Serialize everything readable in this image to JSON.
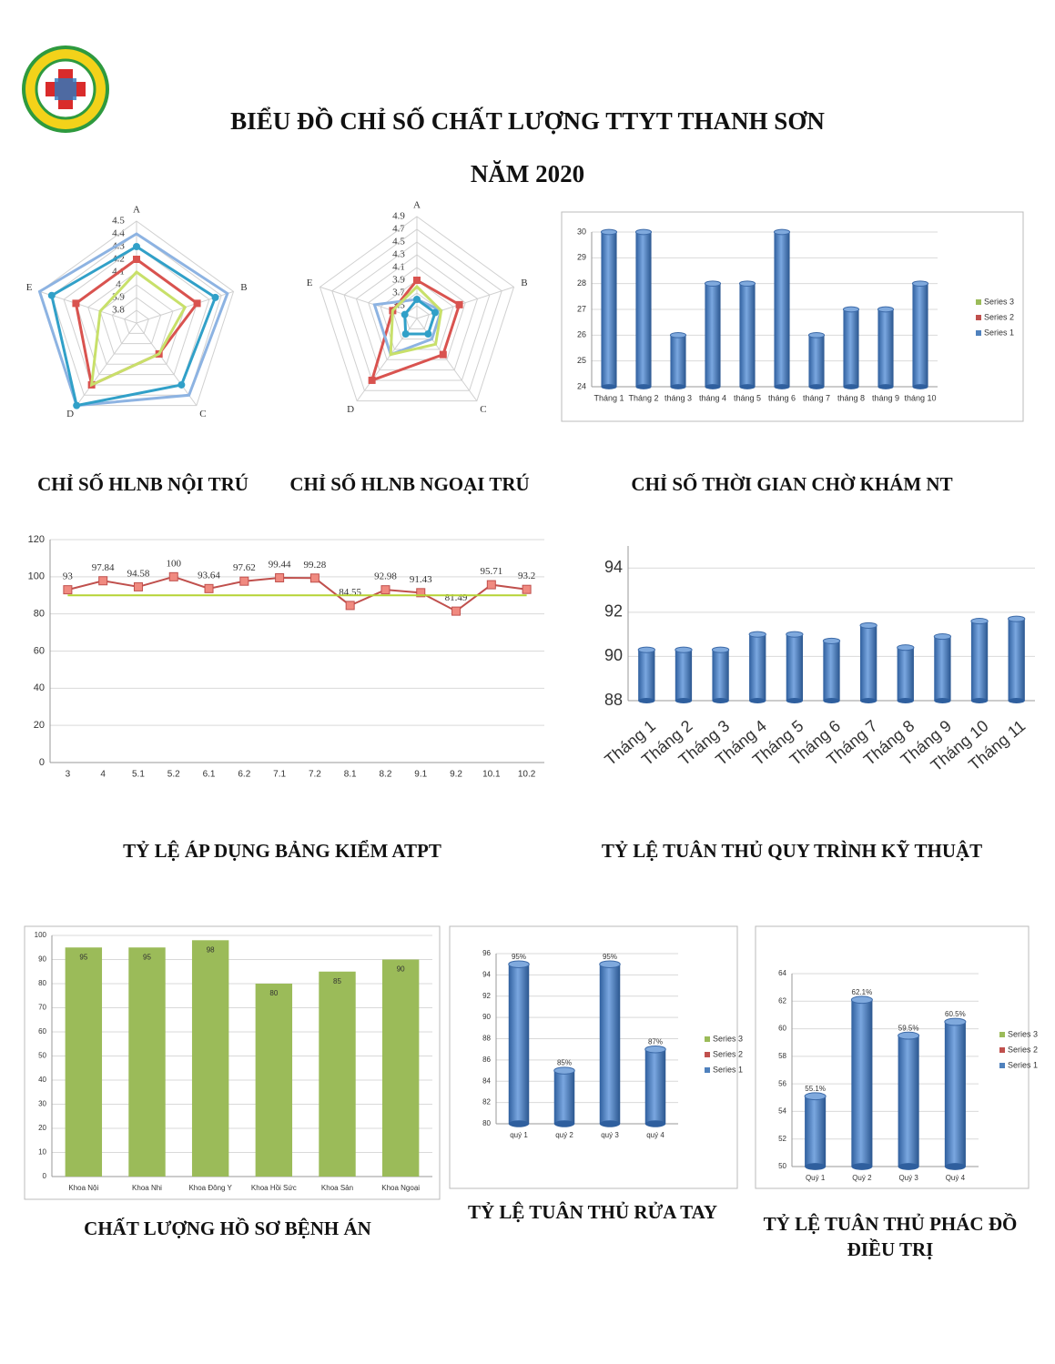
{
  "header": {
    "title_line1": "BIỂU ĐỒ CHỈ SỐ CHẤT LƯỢNG TTYT THANH SƠN",
    "title_line2": "NĂM 2020"
  },
  "chart_data": [
    {
      "type": "radar",
      "title": "CHỈ SỐ HLNB NỘI TRÚ",
      "axes": [
        "A",
        "B",
        "C",
        "D",
        "E"
      ],
      "rlim": [
        3.7,
        4.5
      ],
      "rticks": [
        3.8,
        3.9,
        4,
        4.1,
        4.2,
        4.3,
        4.4,
        4.5
      ],
      "series": [
        {
          "color": "#8db3e2",
          "values": [
            4.4,
            4.45,
            4.4,
            4.5,
            4.5
          ]
        },
        {
          "color": "#31a0c8",
          "marker": "circle",
          "values": [
            4.3,
            4.35,
            4.3,
            4.5,
            4.4
          ]
        },
        {
          "color": "#d9534f",
          "marker": "square",
          "values": [
            4.2,
            4.2,
            4.0,
            4.3,
            4.2
          ]
        },
        {
          "color": "#c8e06a",
          "values": [
            4.1,
            4.1,
            4.0,
            4.3,
            4.0
          ]
        }
      ]
    },
    {
      "type": "radar",
      "title": "CHỈ SỐ HLNB NGOẠI TRÚ",
      "axes": [
        "A",
        "B",
        "C",
        "D",
        "E"
      ],
      "rlim": [
        3.3,
        4.9
      ],
      "rticks": [
        3.5,
        3.7,
        3.9,
        4.1,
        4.3,
        4.5,
        4.7,
        4.9
      ],
      "series": [
        {
          "color": "#d9534f",
          "marker": "square",
          "values": [
            3.9,
            4.0,
            4.0,
            4.5,
            3.7
          ]
        },
        {
          "color": "#8db3e2",
          "values": [
            3.6,
            3.7,
            3.7,
            4.0,
            4.0
          ]
        },
        {
          "color": "#c8e06a",
          "values": [
            3.8,
            3.7,
            3.8,
            4.0,
            3.7
          ]
        },
        {
          "color": "#31a0c8",
          "marker": "circle",
          "values": [
            3.6,
            3.6,
            3.6,
            3.6,
            3.5
          ]
        }
      ]
    },
    {
      "type": "bar",
      "title": "CHỈ SỐ THỜI GIAN CHỜ KHÁM NT",
      "categories": [
        "Tháng 1",
        "Tháng 2",
        "tháng 3",
        "tháng 4",
        "tháng 5",
        "tháng 6",
        "tháng 7",
        "tháng 8",
        "tháng 9",
        "tháng 10"
      ],
      "ylim": [
        24,
        30
      ],
      "yticks": [
        24,
        25,
        26,
        27,
        28,
        29,
        30
      ],
      "grid": true,
      "cylinder": true,
      "series": [
        {
          "name": "Series 3",
          "color": "#9bbb59",
          "values": [
            null,
            null,
            null,
            null,
            null,
            null,
            null,
            null,
            null,
            null
          ]
        },
        {
          "name": "Series 2",
          "color": "#c0504d",
          "values": [
            null,
            null,
            null,
            null,
            null,
            null,
            null,
            null,
            null,
            null
          ]
        },
        {
          "name": "Series 1",
          "color": "#4f81bd",
          "values": [
            30,
            30,
            26,
            28,
            28,
            30,
            26,
            27,
            27,
            28
          ]
        }
      ]
    },
    {
      "type": "line",
      "title": "TỶ LỆ ÁP DỤNG BẢNG KIỂM ATPT",
      "categories": [
        "3",
        "4",
        "5.1",
        "5.2",
        "6.1",
        "6.2",
        "7.1",
        "7.2",
        "8.1",
        "8.2",
        "9.1",
        "9.2",
        "10.1",
        "10.2"
      ],
      "ylim": [
        0,
        120
      ],
      "yticks": [
        0,
        20,
        40,
        60,
        80,
        100,
        120
      ],
      "grid": true,
      "series": [
        {
          "color": "#c0504d",
          "marker": "square",
          "data_labels": true,
          "values": [
            93,
            97.84,
            94.58,
            100,
            93.64,
            97.62,
            99.44,
            99.28,
            84.55,
            92.98,
            91.43,
            81.49,
            95.71,
            93.2
          ]
        },
        {
          "color": "#b5d334",
          "values": [
            90,
            90,
            90,
            90,
            90,
            90,
            90,
            90,
            90,
            90,
            90,
            90,
            90,
            90
          ]
        }
      ]
    },
    {
      "type": "bar",
      "title": "TỶ LỆ TUÂN THỦ QUY TRÌNH KỸ THUẬT",
      "categories": [
        "Tháng 1",
        "Tháng 2",
        "Tháng 3",
        "Tháng 4",
        "Tháng 5",
        "Tháng 6",
        "Tháng 7",
        "Tháng 8",
        "Tháng 9",
        "Tháng 10",
        "Tháng 11"
      ],
      "ylim": [
        88,
        95
      ],
      "yticks": [
        88,
        90,
        92,
        94
      ],
      "grid": true,
      "cylinder": true,
      "series": [
        {
          "color": "#4f81bd",
          "values": [
            90.3,
            90.3,
            90.3,
            91,
            91,
            90.7,
            91.4,
            90.4,
            90.9,
            91.6,
            91.7
          ]
        }
      ]
    },
    {
      "type": "bar",
      "title": "CHẤT LƯỢNG HỒ SƠ BỆNH ÁN",
      "categories": [
        "Khoa Nội",
        "Khoa Nhi",
        "Khoa Đông Y",
        "Khoa Hồi Sức",
        "Khoa Sản",
        "Khoa Ngoại"
      ],
      "ylim": [
        0,
        100
      ],
      "yticks": [
        0,
        10,
        20,
        30,
        40,
        50,
        60,
        70,
        80,
        90,
        100
      ],
      "grid": true,
      "series": [
        {
          "color": "#9bbb59",
          "data_labels": true,
          "values": [
            95,
            95,
            98,
            80,
            85,
            90
          ]
        }
      ]
    },
    {
      "type": "bar",
      "title": "TỶ LỆ TUÂN THỦ RỬA TAY",
      "categories": [
        "quý 1",
        "quý 2",
        "quý 3",
        "quý 4"
      ],
      "ylim": [
        80,
        96
      ],
      "yticks": [
        80,
        82,
        84,
        86,
        88,
        90,
        92,
        94,
        96
      ],
      "grid": true,
      "cylinder": true,
      "series": [
        {
          "name": "Series 3",
          "color": "#9bbb59",
          "values": [
            null,
            null,
            null,
            null
          ]
        },
        {
          "name": "Series 2",
          "color": "#c0504d",
          "values": [
            null,
            null,
            null,
            null
          ]
        },
        {
          "name": "Series 1",
          "color": "#4f81bd",
          "values": [
            95,
            85,
            95,
            87
          ],
          "value_labels": [
            "95%",
            "85%",
            "95%",
            "87%"
          ]
        }
      ]
    },
    {
      "type": "bar",
      "title": "TỶ LỆ TUÂN THỦ PHÁC ĐỒ ĐIỀU TRỊ",
      "categories": [
        "Quý 1",
        "Quý 2",
        "Quý 3",
        "Quý 4"
      ],
      "ylim": [
        50,
        64
      ],
      "yticks": [
        50,
        52,
        54,
        56,
        58,
        60,
        62,
        64
      ],
      "grid": true,
      "cylinder": true,
      "series": [
        {
          "name": "Series 3",
          "color": "#9bbb59",
          "values": [
            null,
            null,
            null,
            null
          ]
        },
        {
          "name": "Series 2",
          "color": "#c0504d",
          "values": [
            null,
            null,
            null,
            null
          ]
        },
        {
          "name": "Series 1",
          "color": "#4f81bd",
          "values": [
            55.1,
            62.1,
            59.5,
            60.5
          ],
          "value_labels": [
            "55.1%",
            "62.1%",
            "59.5%",
            "60.5%"
          ]
        }
      ]
    }
  ]
}
